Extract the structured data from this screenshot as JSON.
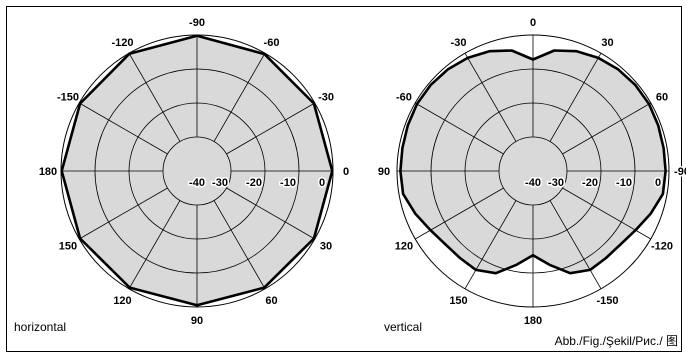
{
  "colors": {
    "fill": "#d9d9d9",
    "line": "#000000",
    "background": "#ffffff"
  },
  "figure_caption": "Abb./Fig./Şekil/Рис./ 图",
  "chart_data": [
    {
      "type": "polar",
      "caption": "horizontal",
      "angle_labels": [
        "-90",
        "-60",
        "-30",
        "0",
        "30",
        "60",
        "90",
        "120",
        "150",
        "180",
        "-150",
        "-120"
      ],
      "radial_tick_labels": [
        "-40",
        "-30",
        "-20",
        "-10",
        "0"
      ],
      "rlim": [
        -40,
        0
      ],
      "grid": true,
      "pattern": {
        "angles_deg": [
          0,
          30,
          60,
          90,
          120,
          150,
          180,
          210,
          240,
          270,
          300,
          330,
          360
        ],
        "values_db": [
          -0.2,
          -0.3,
          -0.3,
          -0.2,
          -0.3,
          -0.4,
          -0.5,
          -0.4,
          -0.3,
          -0.2,
          -0.3,
          -0.2,
          -0.2
        ]
      }
    },
    {
      "type": "polar",
      "caption": "vertical",
      "angle_labels": [
        "0",
        "30",
        "60",
        "-90",
        "-120",
        "-150",
        "180",
        "150",
        "120",
        "90",
        "-60",
        "-30"
      ],
      "radial_tick_labels": [
        "-40",
        "-30",
        "-20",
        "-10",
        "0"
      ],
      "rlim": [
        -40,
        0
      ],
      "grid": true,
      "pattern": {
        "angles_deg": [
          0,
          10,
          20,
          30,
          40,
          50,
          60,
          70,
          80,
          90,
          100,
          110,
          120,
          130,
          140,
          150,
          160,
          170,
          180,
          190,
          200,
          210,
          220,
          230,
          240,
          250,
          260,
          270,
          280,
          290,
          300,
          310,
          320,
          330,
          340,
          350,
          360
        ],
        "values_db": [
          -7.2,
          -4,
          -2.5,
          -1.6,
          -1,
          -0.7,
          -0.6,
          -0.8,
          -1,
          -1,
          -1.2,
          -3.2,
          -5.2,
          -6.4,
          -6.6,
          -6.4,
          -8,
          -12,
          -15.2,
          -12,
          -8,
          -6.4,
          -6.6,
          -6.4,
          -5.2,
          -3.2,
          -1.2,
          -1,
          -1,
          -0.8,
          -0.6,
          -0.7,
          -1,
          -1.6,
          -2.5,
          -4,
          -7.2
        ]
      }
    }
  ]
}
